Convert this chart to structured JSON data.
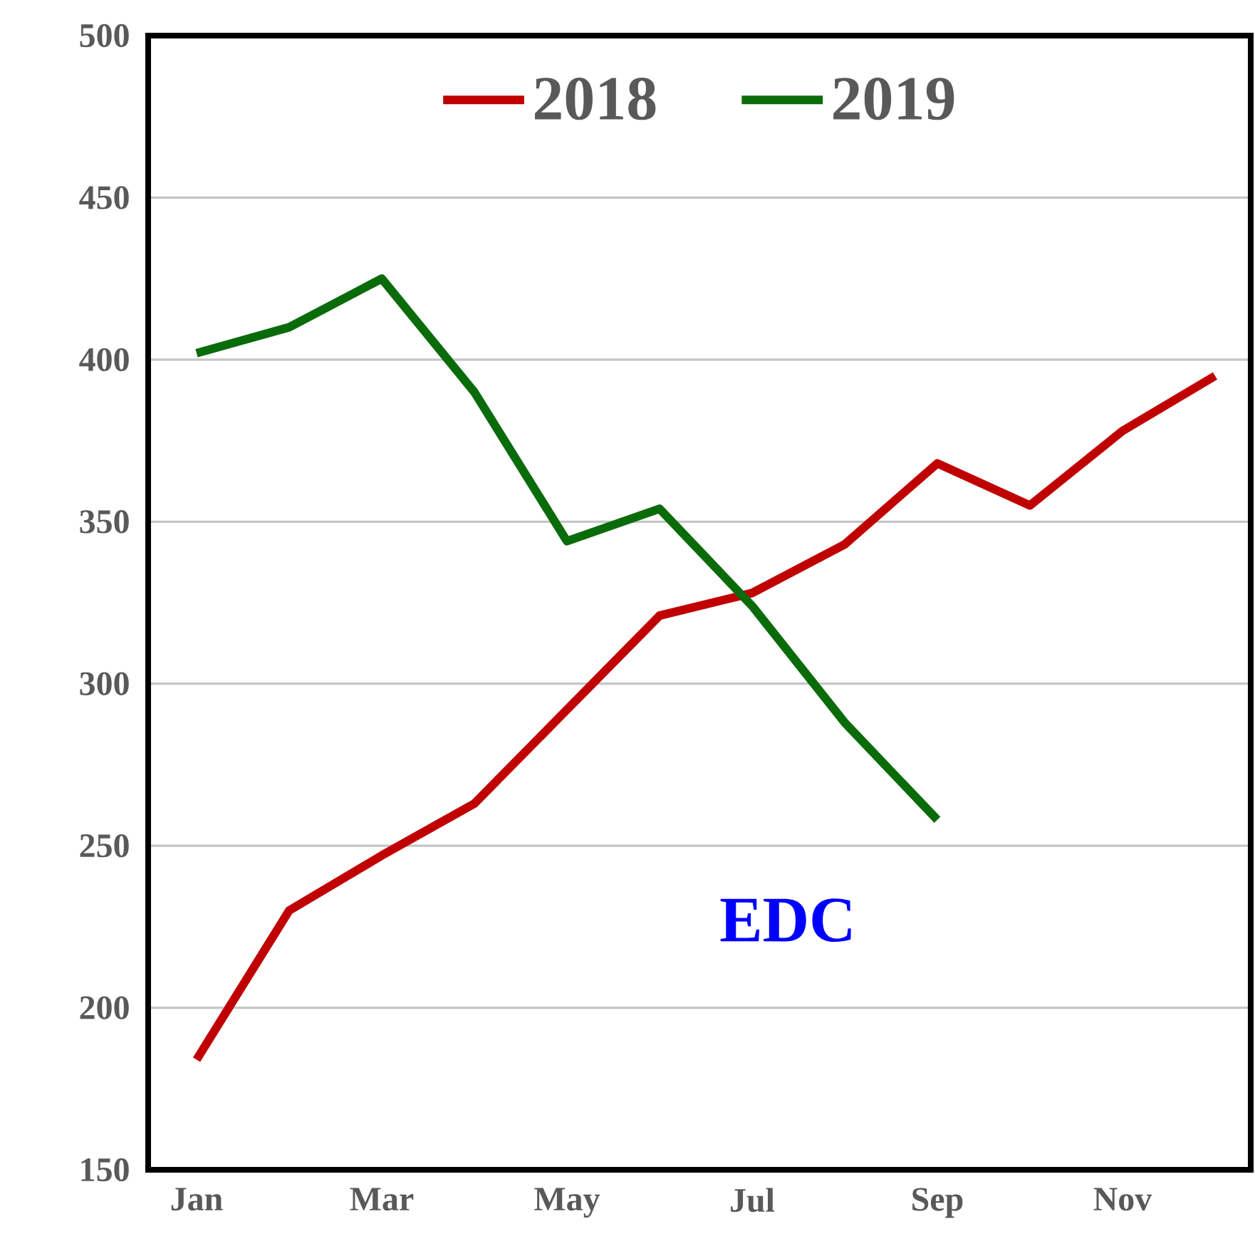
{
  "chart_data": {
    "type": "line",
    "categories": [
      "Jan",
      null,
      "Mar",
      null,
      "May",
      null,
      "Jul",
      null,
      "Sep",
      null,
      "Nov",
      null
    ],
    "series": [
      {
        "name": "2018",
        "color": "#c00000",
        "values": [
          184,
          230,
          247,
          263,
          292,
          321,
          328,
          343,
          368,
          355,
          378,
          395
        ]
      },
      {
        "name": "2019",
        "color": "#0a6b0a",
        "values": [
          402,
          410,
          425,
          390,
          344,
          354,
          324,
          288,
          258,
          null,
          null,
          null
        ]
      }
    ],
    "ylim": [
      150,
      500
    ],
    "yticks": [
      150,
      200,
      250,
      300,
      350,
      400,
      450,
      500
    ],
    "grid": "y",
    "legend": "top",
    "marker": "none",
    "line_style": "solid",
    "annotations": [
      "EDC"
    ]
  }
}
